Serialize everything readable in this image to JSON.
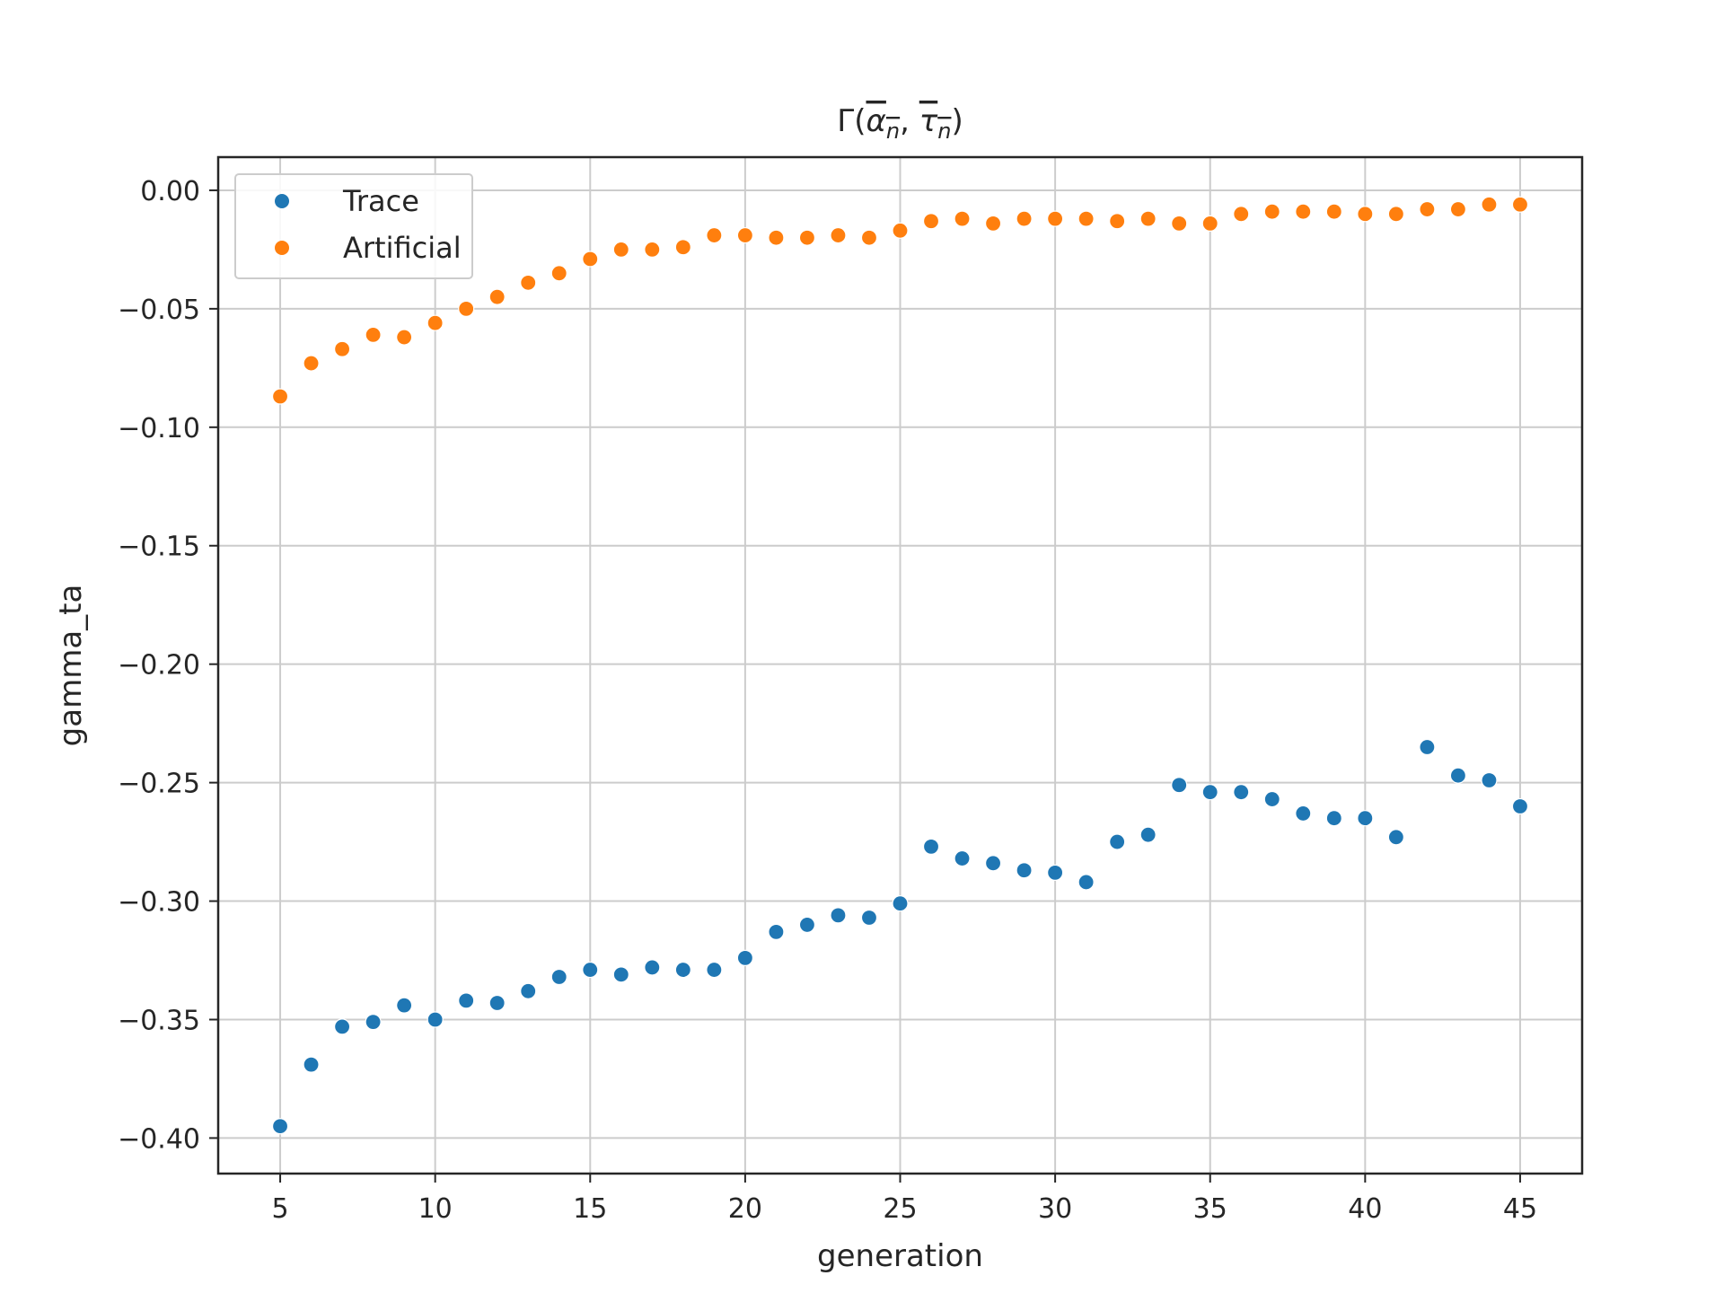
{
  "chart_data": {
    "type": "scatter",
    "title": {
      "base": "Γ(",
      "sym1": "α",
      "sub1": "n",
      "sep": ", ",
      "sym2": "τ",
      "sub2": "n",
      "end": ")"
    },
    "xlabel": "generation",
    "ylabel": "gamma_ta",
    "xlim": [
      3,
      47
    ],
    "ylim": [
      -0.415,
      0.014
    ],
    "xticks": [
      5,
      10,
      15,
      20,
      25,
      30,
      35,
      40,
      45
    ],
    "xtick_labels": [
      "5",
      "10",
      "15",
      "20",
      "25",
      "30",
      "35",
      "40",
      "45"
    ],
    "yticks": [
      0.0,
      -0.05,
      -0.1,
      -0.15,
      -0.2,
      -0.25,
      -0.3,
      -0.35,
      -0.4
    ],
    "ytick_labels": [
      "0.00",
      "−0.05",
      "−0.10",
      "−0.15",
      "−0.20",
      "−0.25",
      "−0.30",
      "−0.35",
      "−0.40"
    ],
    "grid": true,
    "legend_position": "top-left",
    "x": [
      5,
      6,
      7,
      8,
      9,
      10,
      11,
      12,
      13,
      14,
      15,
      16,
      17,
      18,
      19,
      20,
      21,
      22,
      23,
      24,
      25,
      26,
      27,
      28,
      29,
      30,
      31,
      32,
      33,
      34,
      35,
      36,
      37,
      38,
      39,
      40,
      41,
      42,
      43,
      44,
      45
    ],
    "series": [
      {
        "name": "Trace",
        "color": "#1f77b4",
        "values": [
          -0.395,
          -0.369,
          -0.353,
          -0.351,
          -0.344,
          -0.35,
          -0.342,
          -0.343,
          -0.338,
          -0.332,
          -0.329,
          -0.331,
          -0.328,
          -0.329,
          -0.329,
          -0.324,
          -0.313,
          -0.31,
          -0.306,
          -0.307,
          -0.301,
          -0.277,
          -0.282,
          -0.284,
          -0.287,
          -0.288,
          -0.292,
          -0.275,
          -0.272,
          -0.251,
          -0.254,
          -0.254,
          -0.257,
          -0.263,
          -0.265,
          -0.265,
          -0.273,
          -0.235,
          -0.247,
          -0.249,
          -0.26
        ]
      },
      {
        "name": "Artificial",
        "color": "#ff7f0e",
        "values": [
          -0.087,
          -0.073,
          -0.067,
          -0.061,
          -0.062,
          -0.056,
          -0.05,
          -0.045,
          -0.039,
          -0.035,
          -0.029,
          -0.025,
          -0.025,
          -0.024,
          -0.019,
          -0.019,
          -0.02,
          -0.02,
          -0.019,
          -0.02,
          -0.017,
          -0.013,
          -0.012,
          -0.014,
          -0.012,
          -0.012,
          -0.012,
          -0.013,
          -0.012,
          -0.014,
          -0.014,
          -0.01,
          -0.009,
          -0.009,
          -0.009,
          -0.01,
          -0.01,
          -0.008,
          -0.008,
          -0.006,
          -0.006
        ]
      }
    ]
  }
}
